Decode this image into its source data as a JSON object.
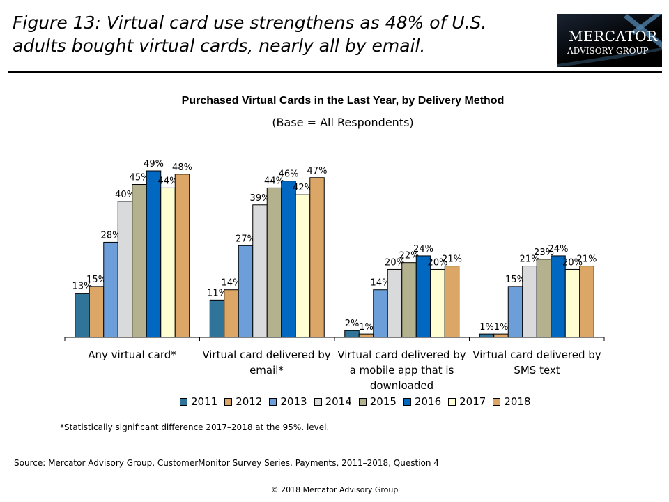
{
  "figure_title": "Figure 13: Virtual card use strengthens as 48% of U.S. adults bought virtual cards, nearly all by email.",
  "logo": {
    "line1": "Mercator",
    "line2": "Advisory Group"
  },
  "chart_data": {
    "type": "bar",
    "title": "Purchased Virtual Cards in the Last Year, by Delivery Method",
    "subtitle": "(Base = All Respondents)",
    "categories": [
      "Any virtual card*",
      "Virtual card delivered by email*",
      "Virtual card delivered by a mobile app that is downloaded",
      "Virtual card delivered by SMS text"
    ],
    "ylim": [
      0,
      50
    ],
    "grid": false,
    "legend_position": "bottom",
    "series": [
      {
        "name": "2011",
        "color": "#31749a",
        "values": [
          13,
          11,
          2,
          1
        ]
      },
      {
        "name": "2012",
        "color": "#dca766",
        "values": [
          15,
          14,
          1,
          1
        ]
      },
      {
        "name": "2013",
        "color": "#6c9fd9",
        "values": [
          28,
          27,
          14,
          15
        ]
      },
      {
        "name": "2014",
        "color": "#d9dadc",
        "values": [
          40,
          39,
          20,
          21
        ]
      },
      {
        "name": "2015",
        "color": "#b4b18e",
        "values": [
          45,
          44,
          22,
          23
        ]
      },
      {
        "name": "2016",
        "color": "#0068c0",
        "values": [
          49,
          46,
          24,
          24
        ]
      },
      {
        "name": "2017",
        "color": "#fefed2",
        "values": [
          44,
          42,
          20,
          20
        ]
      },
      {
        "name": "2018",
        "color": "#dca766",
        "values": [
          48,
          47,
          21,
          21
        ]
      }
    ]
  },
  "note": "*Statistically significant difference 2017–2018 at the 95%. level.",
  "source": "Source: Mercator Advisory Group, CustomerMonitor Survey Series, Payments, 2011–2018,  Question 4",
  "copyright": "© 2018 Mercator Advisory Group"
}
